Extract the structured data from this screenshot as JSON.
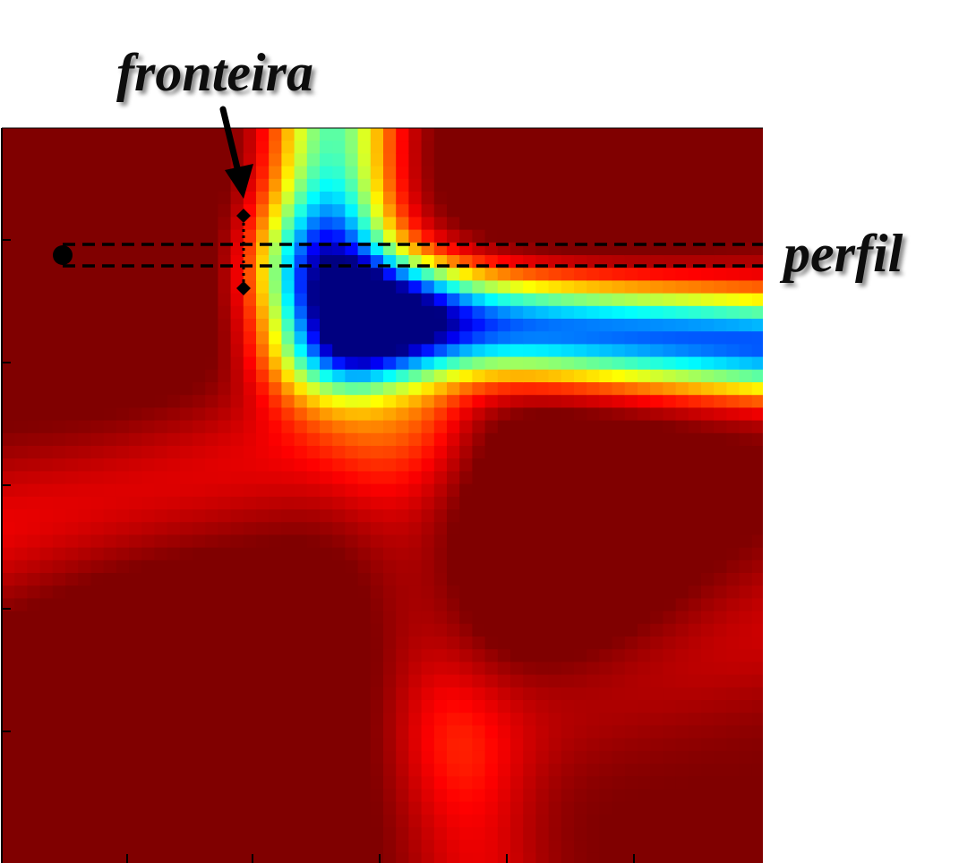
{
  "labels": {
    "boundary": "fronteira",
    "profile": "perfil"
  },
  "colors": {
    "text": "#111111",
    "marker": "#000000",
    "colormap": "jet"
  }
}
